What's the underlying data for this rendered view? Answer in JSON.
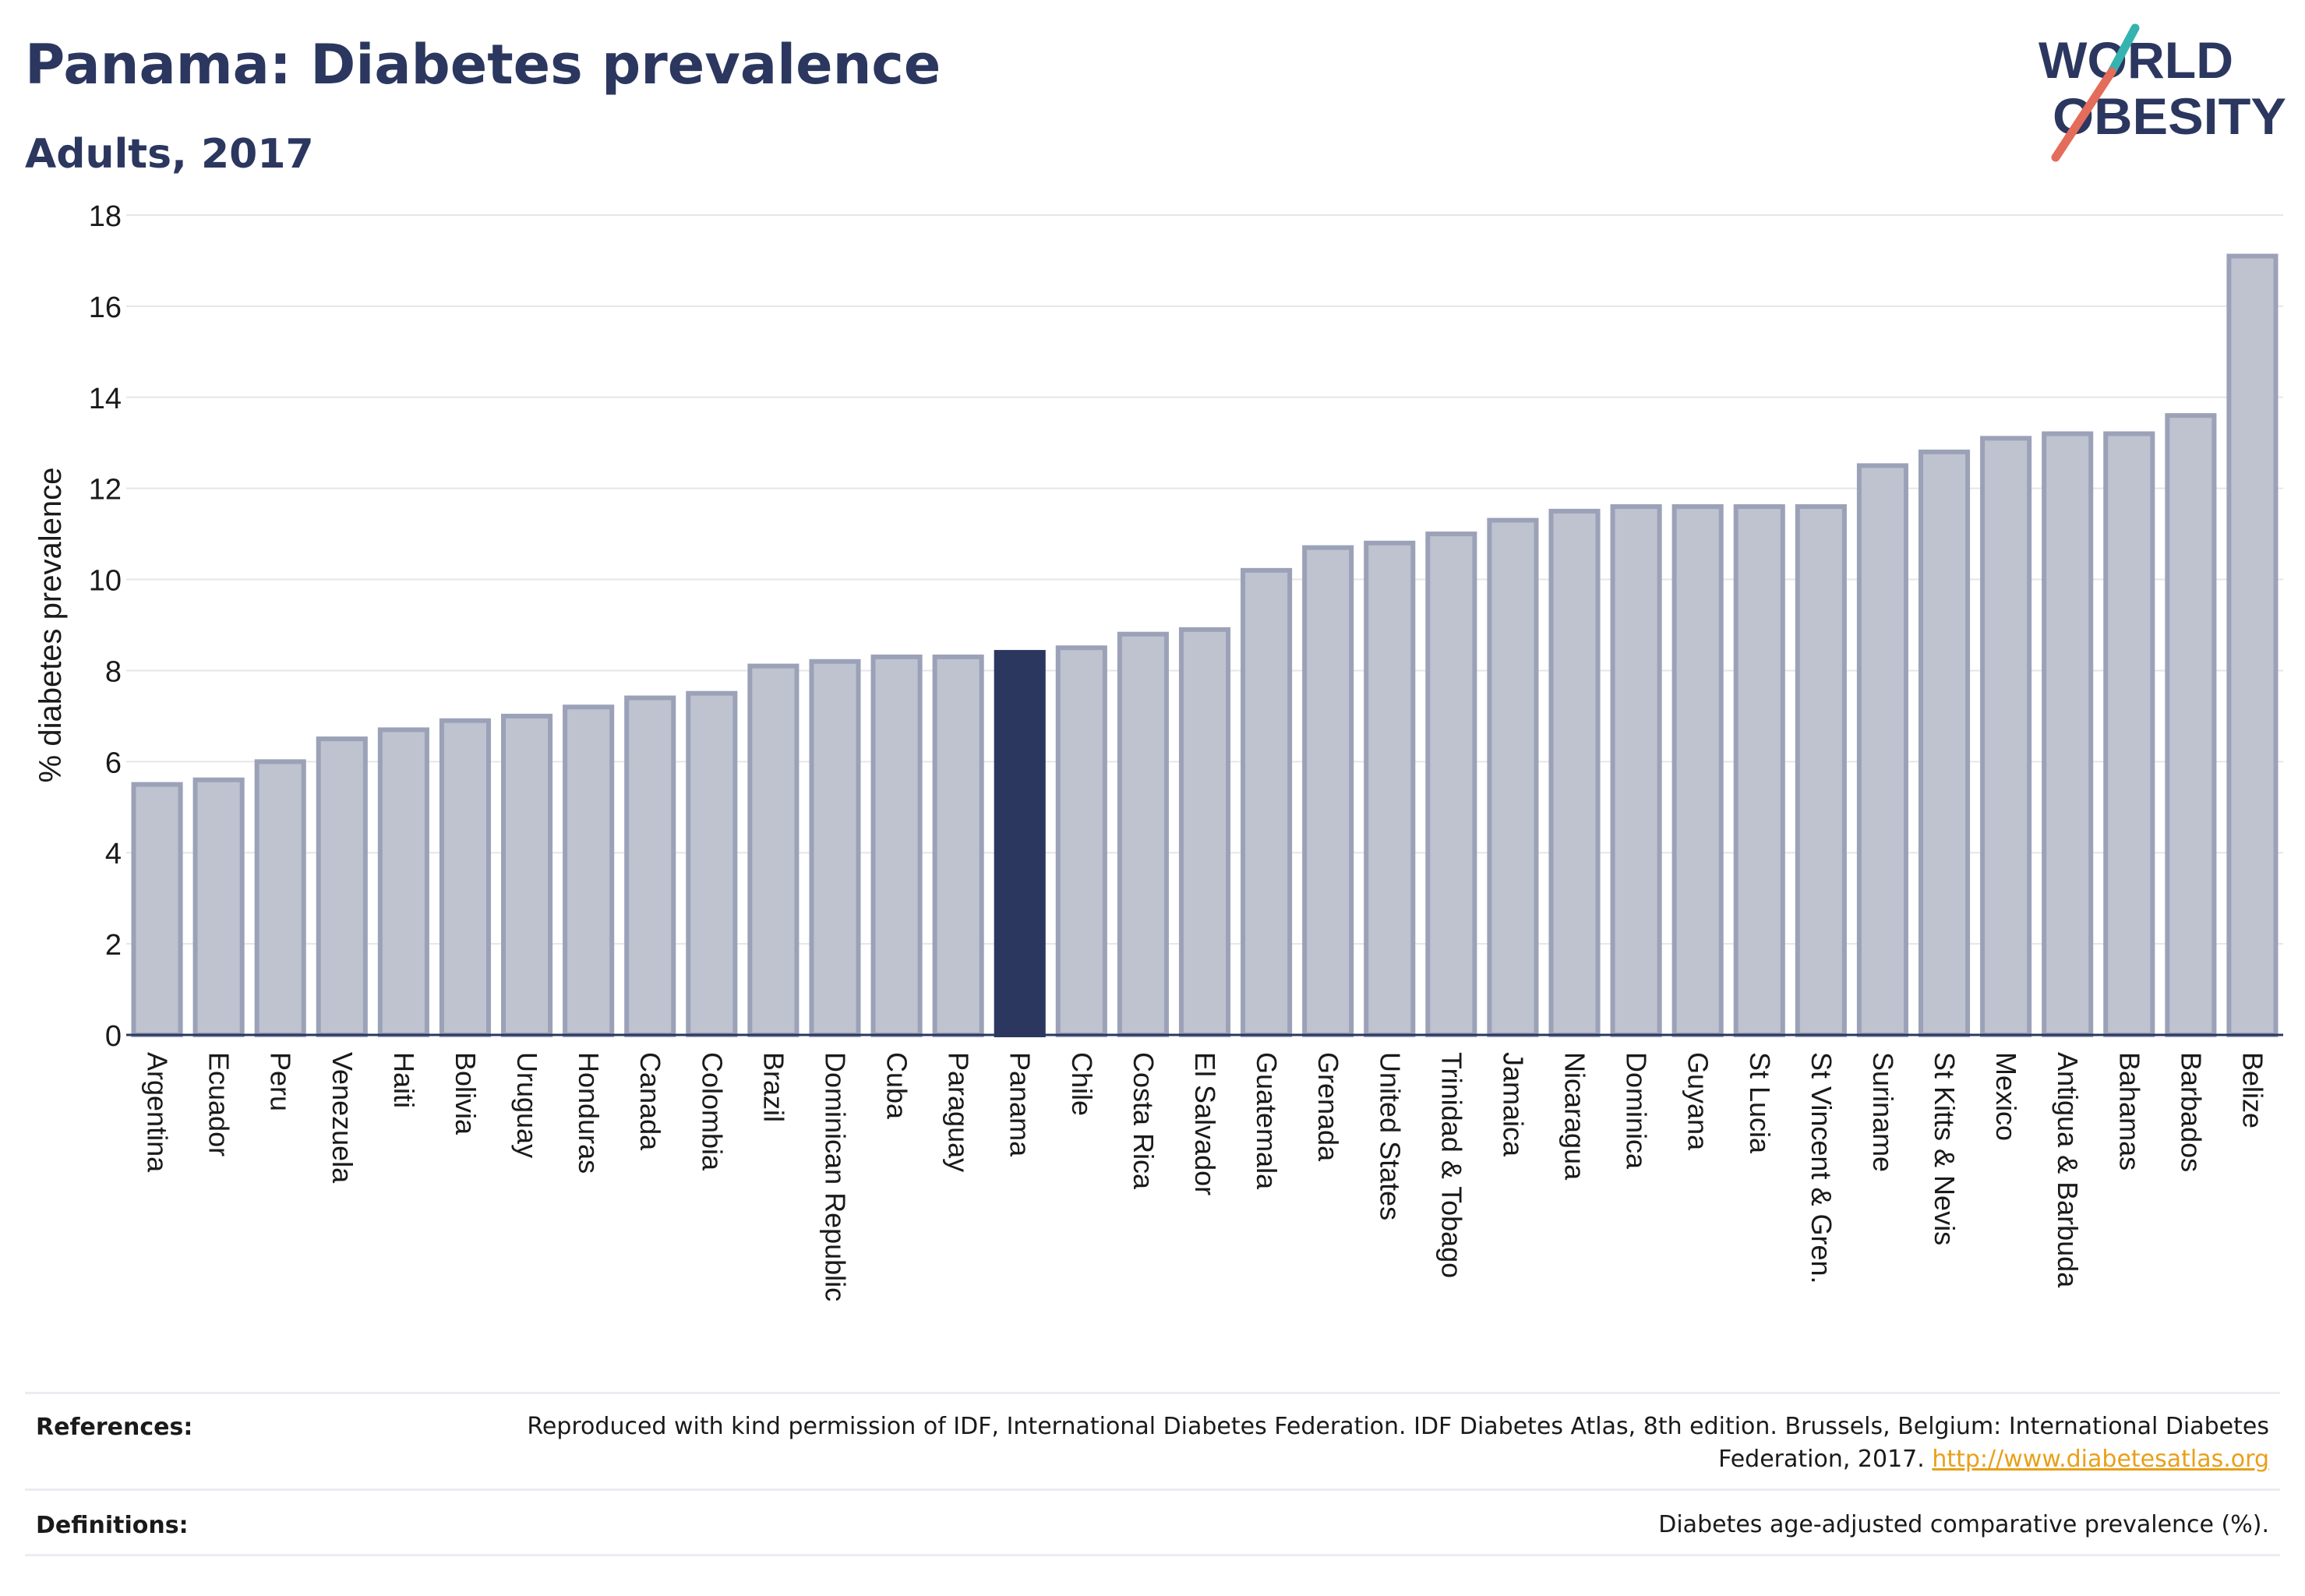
{
  "header": {
    "title": "Panama: Diabetes prevalence",
    "subtitle": "Adults, 2017"
  },
  "logo": {
    "line1": "WORLD",
    "line2": "OBESITY",
    "slash_color_top": "#35b3b0",
    "slash_color_bottom": "#e46c5a"
  },
  "colors": {
    "bar": "#bfc2cf",
    "bar_border": "#9ba2b8",
    "highlight": "#2b375f",
    "text_dark": "#2b375f",
    "link": "#e8a01a"
  },
  "chart_data": {
    "type": "bar",
    "title": "Panama: Diabetes prevalence",
    "subtitle": "Adults, 2017",
    "xlabel": "",
    "ylabel": "% diabetes prevalence",
    "ylim": [
      0,
      18
    ],
    "yticks": [
      0,
      2,
      4,
      6,
      8,
      10,
      12,
      14,
      16,
      18
    ],
    "grid": true,
    "highlight": "Panama",
    "categories": [
      "Argentina",
      "Ecuador",
      "Peru",
      "Venezuela",
      "Haiti",
      "Bolivia",
      "Uruguay",
      "Honduras",
      "Canada",
      "Colombia",
      "Brazil",
      "Dominican Republic",
      "Cuba",
      "Paraguay",
      "Panama",
      "Chile",
      "Costa Rica",
      "El Salvador",
      "Guatemala",
      "Grenada",
      "United States",
      "Trinidad & Tobago",
      "Jamaica",
      "Nicaragua",
      "Dominica",
      "Guyana",
      "St Lucia",
      "St Vincent & Gren.",
      "Suriname",
      "St Kitts & Nevis",
      "Mexico",
      "Antigua & Barbuda",
      "Bahamas",
      "Barbados",
      "Belize"
    ],
    "values": [
      5.5,
      5.6,
      6.0,
      6.5,
      6.7,
      6.9,
      7.0,
      7.2,
      7.4,
      7.5,
      8.1,
      8.2,
      8.3,
      8.3,
      8.4,
      8.5,
      8.8,
      8.9,
      10.2,
      10.7,
      10.8,
      11.0,
      11.3,
      11.5,
      11.6,
      11.6,
      11.6,
      11.6,
      12.5,
      12.8,
      13.1,
      13.2,
      13.2,
      13.6,
      17.1
    ]
  },
  "footer": {
    "references_label": "References:",
    "references_text": "Reproduced with kind permission of IDF, International Diabetes Federation. IDF Diabetes Atlas, 8th edition. Brussels, Belgium: International Diabetes Federation, 2017.",
    "references_link": "http://www.diabetesatlas.org",
    "definitions_label": "Definitions:",
    "definitions_text": "Diabetes age-adjusted comparative prevalence (%)."
  }
}
